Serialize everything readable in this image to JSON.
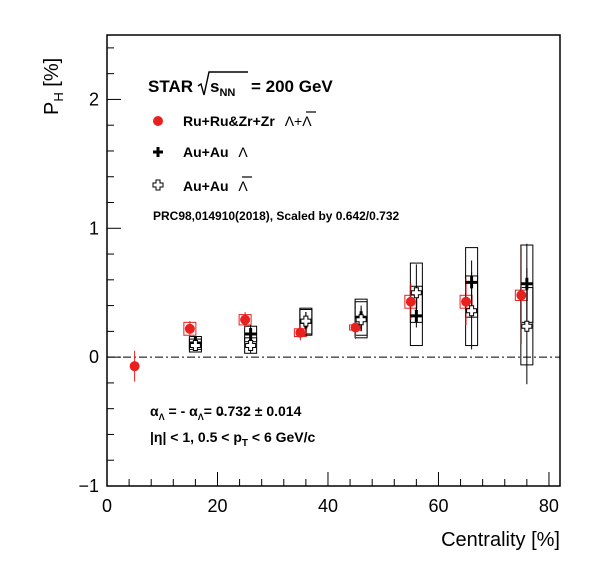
{
  "chart_data": {
    "type": "scatter",
    "xlabel": "Centrality [%]",
    "ylabel": "P_H [%]",
    "ylabel_main": "P",
    "ylabel_sub": "H",
    "ylabel_unit": " [%]",
    "xlim": [
      0,
      82
    ],
    "ylim": [
      -1,
      2.5
    ],
    "xticks": [
      0,
      20,
      40,
      60,
      80
    ],
    "yticks": [
      -1,
      0,
      1,
      2
    ],
    "grid": false,
    "zero_line": 0,
    "legend_position": "top-left",
    "star_label": {
      "prefix": "STAR",
      "sqrt_main": "s",
      "sqrt_sub": "NN",
      "suffix": "= 200 GeV"
    },
    "series": [
      {
        "name": "Ru+Ru&Zr+Zr  Λ+Λ̄",
        "legend_main": "Ru+Ru&Zr+Zr",
        "legend_particle": "Λ+Λ",
        "marker": "filled-circle",
        "color": "#e8211e",
        "x": [
          5,
          15,
          25,
          35,
          45,
          55,
          65,
          75
        ],
        "y": [
          -0.07,
          0.22,
          0.29,
          0.19,
          0.23,
          0.43,
          0.43,
          0.48
        ],
        "stat_err": [
          0.12,
          0.06,
          0.06,
          0.06,
          0.09,
          0.14,
          0.18,
          0.38
        ],
        "sys_err": [
          0.0,
          0.05,
          0.04,
          0.03,
          0.02,
          0.05,
          0.05,
          0.04
        ]
      },
      {
        "name": "Au+Au  Λ",
        "legend_main": "Au+Au",
        "legend_particle": "Λ",
        "marker": "filled-cross",
        "color": "#000000",
        "x": [
          16,
          26,
          36,
          46,
          56,
          66,
          76
        ],
        "y": [
          0.11,
          0.18,
          0.27,
          0.31,
          0.32,
          0.58,
          0.57
        ],
        "stat_err": [
          0.05,
          0.07,
          0.08,
          0.09,
          0.09,
          0.17,
          0.31
        ],
        "sys_err": [
          0.05,
          0.06,
          0.1,
          0.14,
          0.23,
          0.27,
          0.3
        ]
      },
      {
        "name": "Au+Au  Λ̄",
        "legend_main": "Au+Au",
        "legend_particle": "Λ",
        "marker": "open-cross",
        "color": "#000000",
        "x": [
          16,
          26,
          36,
          46,
          56,
          66,
          76
        ],
        "y": [
          0.09,
          0.09,
          0.28,
          0.29,
          0.5,
          0.36,
          0.24
        ],
        "stat_err": [
          0.04,
          0.06,
          0.07,
          0.09,
          0.22,
          0.3,
          0.45
        ],
        "sys_err": [
          0.05,
          0.06,
          0.1,
          0.14,
          0.23,
          0.27,
          0.3
        ]
      }
    ],
    "annotations": {
      "reference": "PRC98,014910(2018), Scaled by 0.642/0.732",
      "alpha_text": "= 0.732 ± 0.014",
      "alpha_left": "α",
      "alpha_left_sub": "Λ",
      "alpha_mid": " = - α",
      "alpha_right_sub": "Λ",
      "kin_prefix": "|η| < 1, 0.5 < p",
      "kin_sub": "T",
      "kin_suffix": " < 6 GeV/c"
    }
  }
}
